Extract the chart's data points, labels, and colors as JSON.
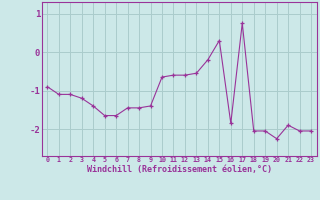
{
  "x": [
    0,
    1,
    2,
    3,
    4,
    5,
    6,
    7,
    8,
    9,
    10,
    11,
    12,
    13,
    14,
    15,
    16,
    17,
    18,
    19,
    20,
    21,
    22,
    23
  ],
  "y": [
    -0.9,
    -1.1,
    -1.1,
    -1.2,
    -1.4,
    -1.65,
    -1.65,
    -1.45,
    -1.45,
    -1.4,
    -0.65,
    -0.6,
    -0.6,
    -0.55,
    -0.2,
    0.3,
    -1.85,
    0.75,
    -2.05,
    -2.05,
    -2.25,
    -1.9,
    -2.05,
    -2.05
  ],
  "line_color": "#993399",
  "marker_color": "#993399",
  "bg_color": "#cce8e8",
  "grid_color": "#aacccc",
  "xlabel": "Windchill (Refroidissement éolien,°C)",
  "ylim": [
    -2.7,
    1.3
  ],
  "xlim": [
    -0.5,
    23.5
  ],
  "yticks": [
    -2,
    -1,
    0,
    1
  ],
  "xticks": [
    0,
    1,
    2,
    3,
    4,
    5,
    6,
    7,
    8,
    9,
    10,
    11,
    12,
    13,
    14,
    15,
    16,
    17,
    18,
    19,
    20,
    21,
    22,
    23
  ],
  "xtick_labels": [
    "0",
    "1",
    "2",
    "3",
    "4",
    "5",
    "6",
    "7",
    "8",
    "9",
    "10",
    "11",
    "12",
    "13",
    "14",
    "15",
    "16",
    "17",
    "18",
    "19",
    "20",
    "21",
    "22",
    "23"
  ]
}
